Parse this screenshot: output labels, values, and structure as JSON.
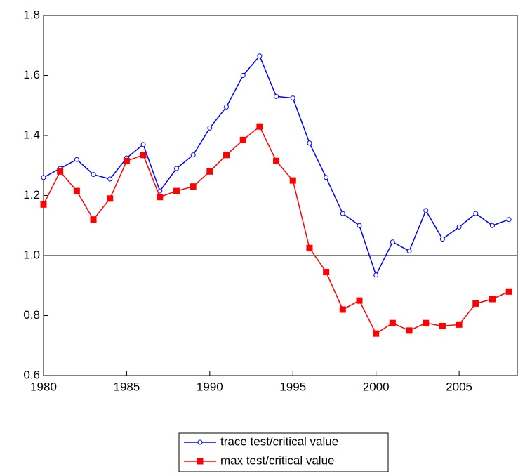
{
  "chart_data": {
    "type": "line",
    "x": [
      1980,
      1981,
      1982,
      1983,
      1984,
      1985,
      1986,
      1987,
      1988,
      1989,
      1990,
      1991,
      1992,
      1993,
      1994,
      1995,
      1996,
      1997,
      1998,
      1999,
      2000,
      2001,
      2002,
      2003,
      2004,
      2005,
      2006,
      2007,
      2008
    ],
    "series": [
      {
        "name": "trace test/critical value",
        "color": "#0000ff",
        "marker": "circle",
        "values": [
          1.26,
          1.29,
          1.32,
          1.27,
          1.255,
          1.325,
          1.37,
          1.215,
          1.29,
          1.335,
          1.425,
          1.495,
          1.6,
          1.665,
          1.53,
          1.525,
          1.375,
          1.26,
          1.14,
          1.1,
          0.935,
          1.045,
          1.015,
          1.15,
          1.055,
          1.095,
          1.14,
          1.1,
          1.12
        ]
      },
      {
        "name": "max test/critical value",
        "color": "#ff0000",
        "marker": "square",
        "values": [
          1.17,
          1.28,
          1.215,
          1.12,
          1.19,
          1.315,
          1.335,
          1.195,
          1.215,
          1.23,
          1.28,
          1.335,
          1.385,
          1.43,
          1.315,
          1.25,
          1.025,
          0.945,
          0.82,
          0.85,
          0.74,
          0.775,
          0.75,
          0.775,
          0.765,
          0.77,
          0.84,
          0.855,
          0.88
        ]
      }
    ],
    "xlim": [
      1980,
      2008.5
    ],
    "xticks": [
      1980,
      1985,
      1990,
      1995,
      2000,
      2005
    ],
    "ylim": [
      0.6,
      1.8
    ],
    "yticks": [
      0.6,
      0.8,
      {
        "value": 1,
        "label": "1.0"
      },
      1.2,
      1.4,
      1.6,
      1.8
    ],
    "hline": 1,
    "legend": "bottom"
  }
}
